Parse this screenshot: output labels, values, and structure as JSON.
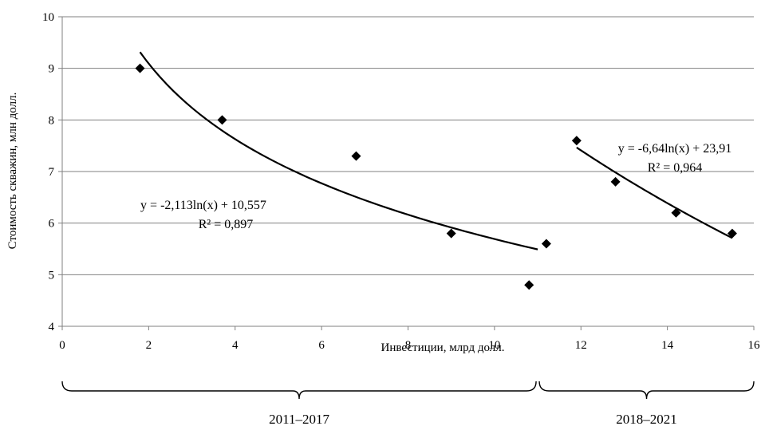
{
  "chart_data": {
    "type": "scatter",
    "title": "",
    "xlabel": "Инвестиции,  млрд долл.",
    "ylabel": "Стоимость скважин,  млн долл.",
    "xlim": [
      0,
      16
    ],
    "ylim": [
      4,
      10
    ],
    "x_ticks": [
      "0",
      "2",
      "4",
      "6",
      "8",
      "10",
      "12",
      "14",
      "16"
    ],
    "y_ticks": [
      "4",
      "5",
      "6",
      "7",
      "8",
      "9",
      "10"
    ],
    "grid": "horizontal",
    "marker_color": "#000000",
    "series": [
      {
        "points": [
          {
            "x": 1.8,
            "y": 9.0
          },
          {
            "x": 3.7,
            "y": 8.0
          },
          {
            "x": 6.8,
            "y": 7.3
          },
          {
            "x": 9.0,
            "y": 5.8
          },
          {
            "x": 10.8,
            "y": 4.8
          },
          {
            "x": 11.2,
            "y": 5.6
          }
        ],
        "trendline": {
          "type": "logarithmic",
          "a": -2.113,
          "b": 10.557,
          "x_range": [
            1.8,
            11.0
          ]
        },
        "equation": "y = -2,113ln(x) + 10,557",
        "r2": "R² = 0,897"
      },
      {
        "points": [
          {
            "x": 11.9,
            "y": 7.6
          },
          {
            "x": 12.8,
            "y": 6.8
          },
          {
            "x": 14.2,
            "y": 6.2
          },
          {
            "x": 15.5,
            "y": 5.8
          }
        ],
        "trendline": {
          "type": "logarithmic",
          "a": -6.64,
          "b": 23.91,
          "x_range": [
            11.9,
            15.5
          ]
        },
        "equation": "y = -6,64ln(x) + 23,91",
        "r2": "R² = 0,964"
      }
    ],
    "periods": [
      {
        "label": "2011–2017",
        "x_range": [
          0,
          11
        ]
      },
      {
        "label": "2018–2021",
        "x_range": [
          11,
          16
        ]
      }
    ]
  }
}
